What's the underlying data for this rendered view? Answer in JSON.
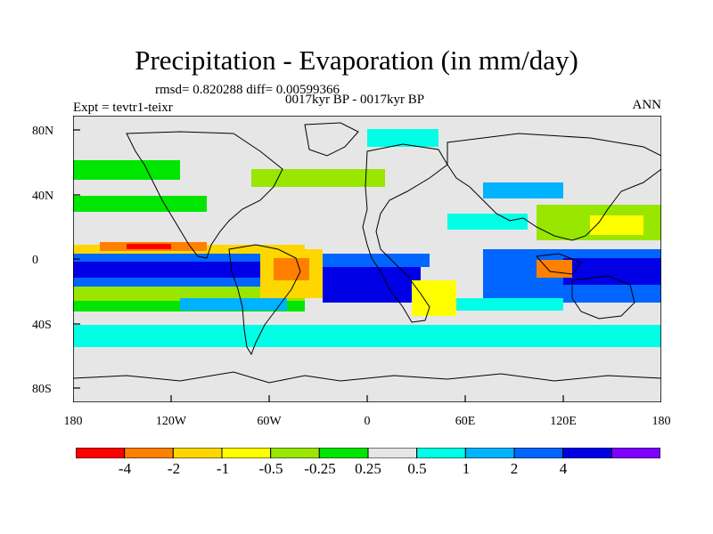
{
  "title": "Precipitation - Evaporation (in mm/day)",
  "stats": "rmsd= 0.820288 diff= 0.00599366",
  "period": "0017kyr BP - 0017kyr BP",
  "experiment": "Expt = tevtr1-teixr",
  "season": "ANN",
  "lat_ticks": [
    "80N",
    "40N",
    "0",
    "40S",
    "80S"
  ],
  "lon_ticks": [
    "180",
    "120W",
    "60W",
    "0",
    "60E",
    "120E",
    "180"
  ],
  "colorbar": {
    "labels": [
      "-4",
      "-2",
      "-1",
      "-0.5",
      "-0.25",
      "0.25",
      "0.5",
      "1",
      "2",
      "4"
    ],
    "colors": [
      "#ff0000",
      "#ff8000",
      "#ffd700",
      "#ffff00",
      "#99e600",
      "#00e600",
      "#e6e6e6",
      "#00ffe6",
      "#00b3ff",
      "#0066ff",
      "#0000e6",
      "#7f00ff"
    ]
  },
  "colors": {
    "ocean_background": "#e6e6e6",
    "coastline": "#000000"
  }
}
